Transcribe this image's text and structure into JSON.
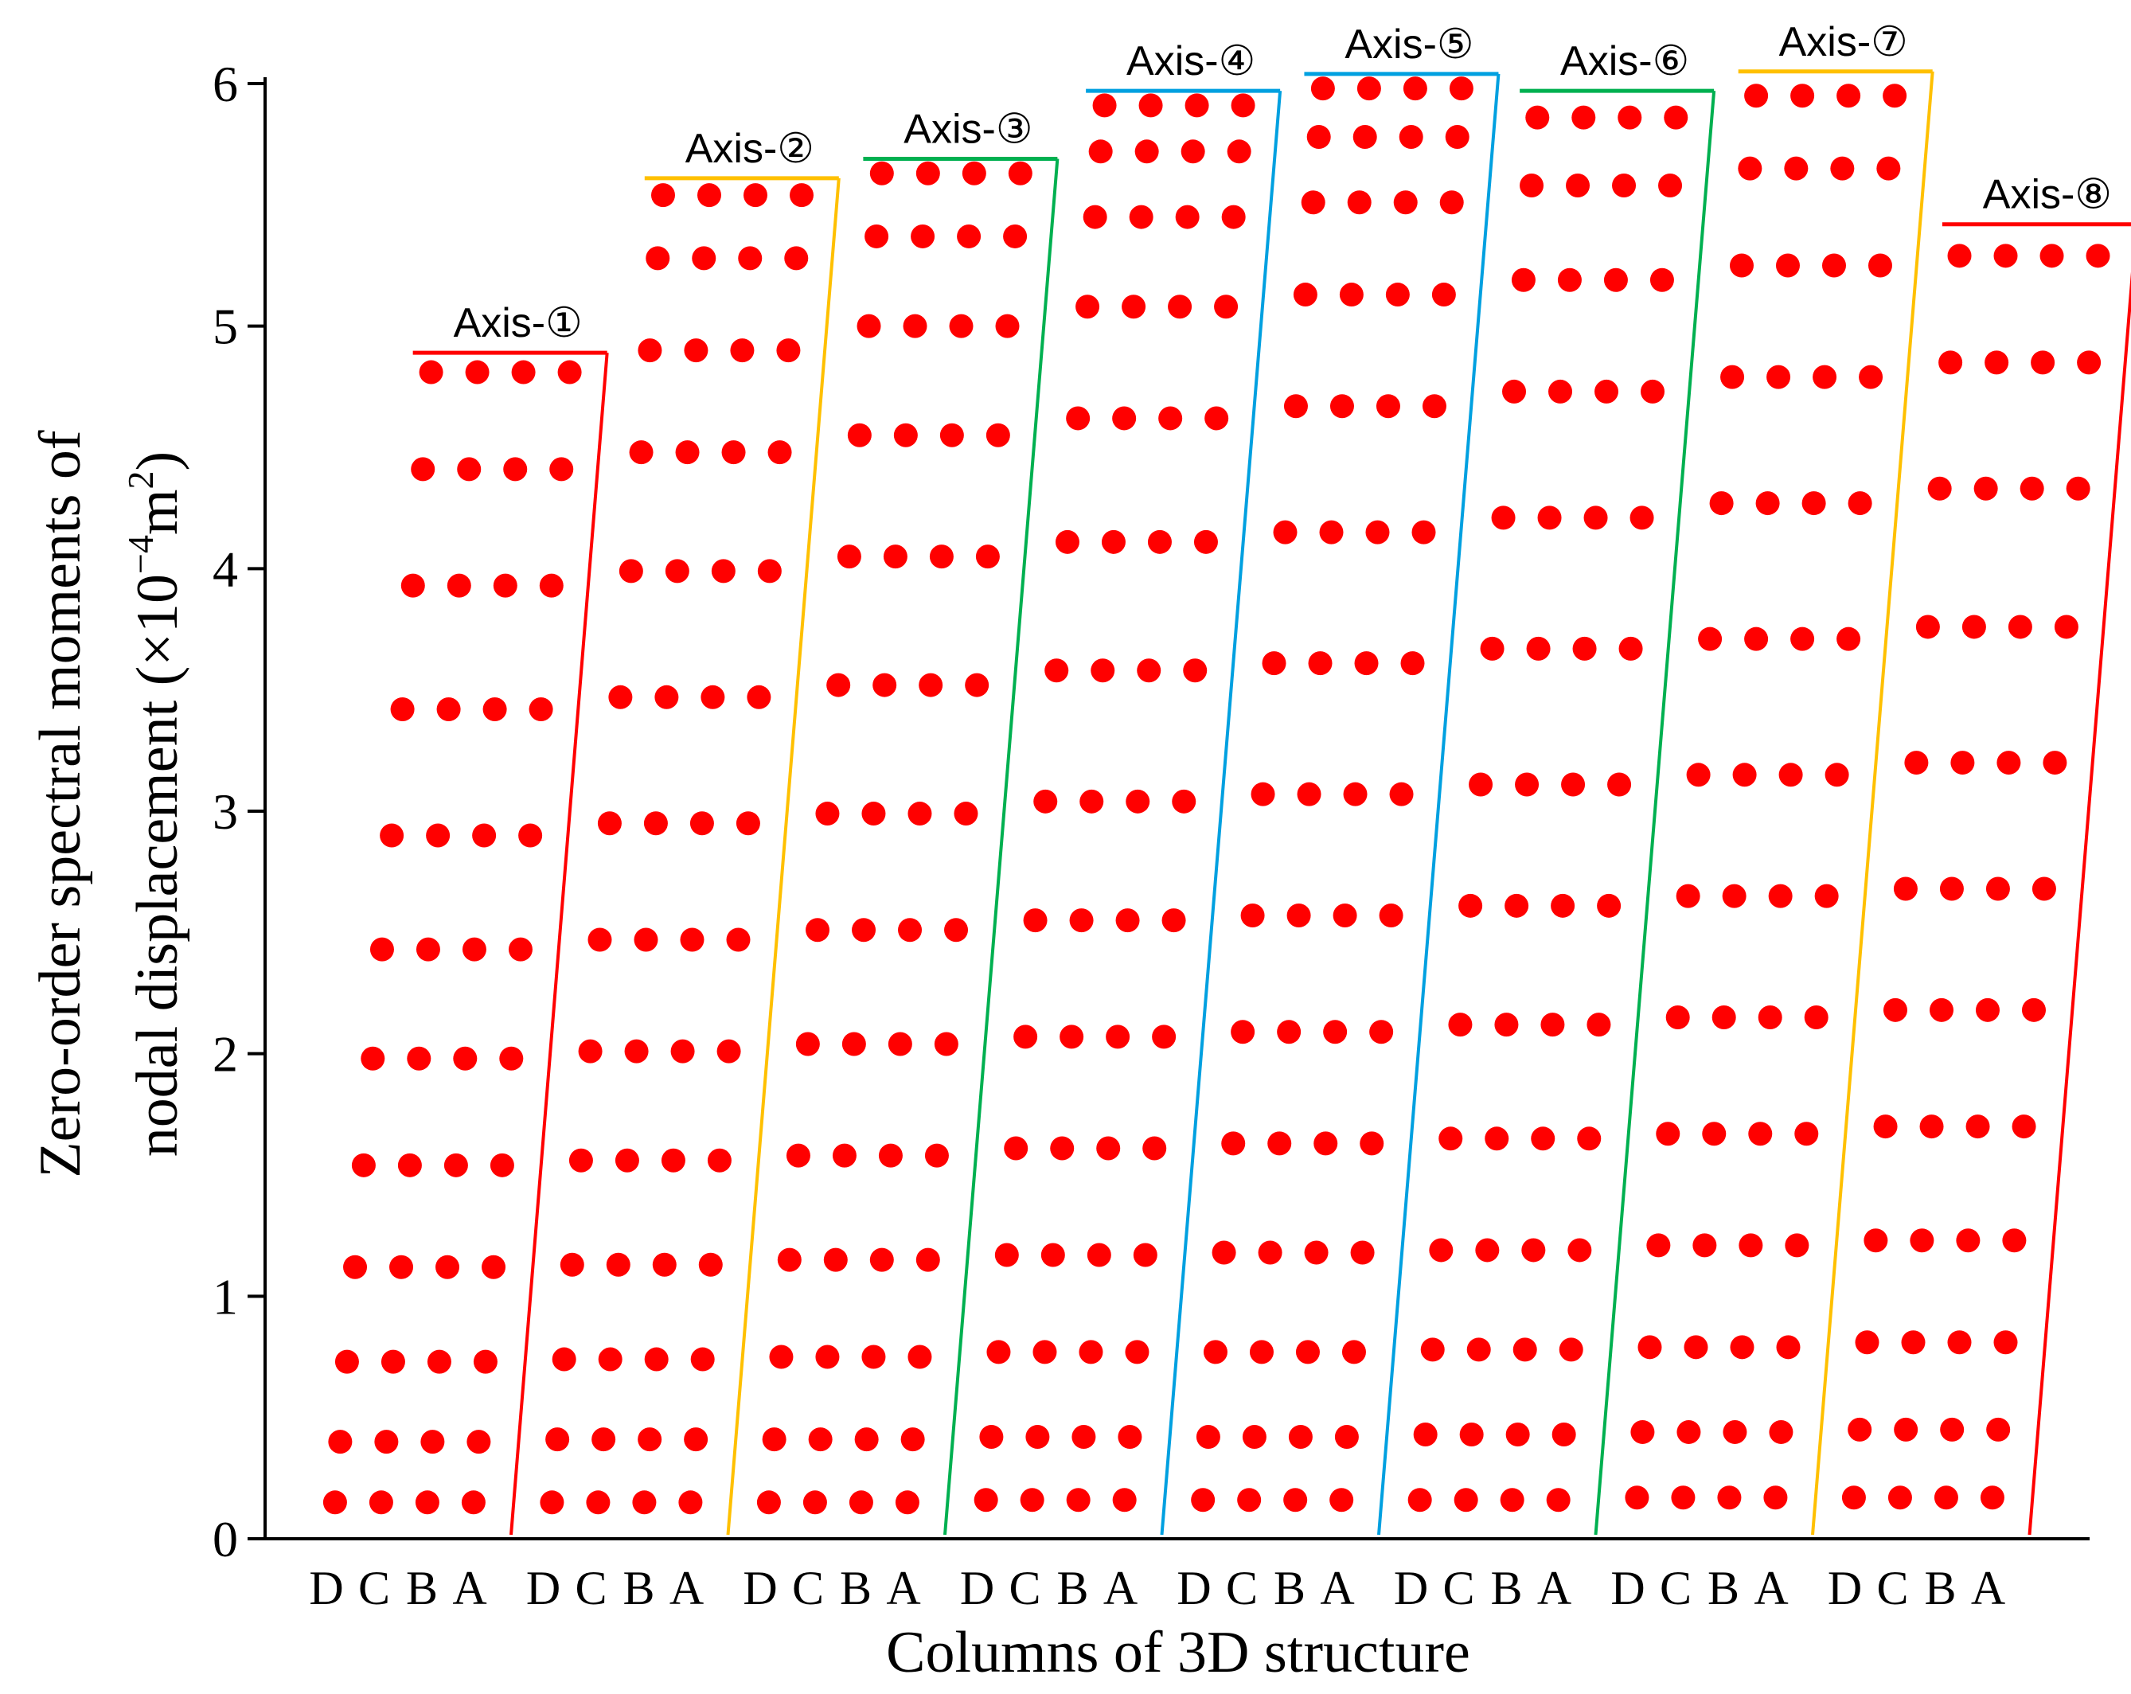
{
  "chart_data": {
    "type": "scatter",
    "xlabel": "Columns of  3D structure",
    "ylabel_line1": "Zero-order spectral moments of",
    "ylabel_line2": "nodal displacement (×10",
    "ylabel_exp1": "−4",
    "ylabel_mid": "m",
    "ylabel_exp2": "2",
    "ylabel_end": ")",
    "ylim": [
      0,
      6
    ],
    "yticks": [
      "0",
      "1",
      "2",
      "3",
      "4",
      "5",
      "6"
    ],
    "column_labels": [
      "D",
      "C",
      "B",
      "A"
    ],
    "marker_color": "#ff0000",
    "groups": [
      {
        "name": "Axis-①",
        "color": "#ff0000",
        "top": 4.89,
        "levels": [
          0.15,
          0.4,
          0.73,
          1.12,
          1.54,
          1.98,
          2.43,
          2.9,
          3.42,
          3.93,
          4.41,
          4.81
        ]
      },
      {
        "name": "Axis-②",
        "color": "#ffc000",
        "top": 5.61,
        "levels": [
          0.15,
          0.41,
          0.74,
          1.13,
          1.56,
          2.01,
          2.47,
          2.95,
          3.47,
          3.99,
          4.48,
          4.9,
          5.28,
          5.54
        ]
      },
      {
        "name": "Axis-③",
        "color": "#00b050",
        "top": 5.69,
        "levels": [
          0.15,
          0.41,
          0.75,
          1.15,
          1.58,
          2.04,
          2.51,
          2.99,
          3.52,
          4.05,
          4.55,
          5.0,
          5.37,
          5.63
        ]
      },
      {
        "name": "Axis-④",
        "color": "#00a0e0",
        "top": 5.97,
        "levels": [
          0.16,
          0.42,
          0.77,
          1.17,
          1.61,
          2.07,
          2.55,
          3.04,
          3.58,
          4.11,
          4.62,
          5.08,
          5.45,
          5.72,
          5.91
        ]
      },
      {
        "name": "Axis-⑤",
        "color": "#00a0e0",
        "top": 6.04,
        "levels": [
          0.16,
          0.42,
          0.77,
          1.18,
          1.63,
          2.09,
          2.57,
          3.07,
          3.61,
          4.15,
          4.67,
          5.13,
          5.51,
          5.78,
          5.98
        ]
      },
      {
        "name": "Axis-⑥",
        "color": "#00b050",
        "top": 5.97,
        "levels": [
          0.16,
          0.43,
          0.78,
          1.19,
          1.65,
          2.12,
          2.61,
          3.11,
          3.67,
          4.21,
          4.73,
          5.19,
          5.58,
          5.86
        ]
      },
      {
        "name": "Axis-⑦",
        "color": "#ffc000",
        "top": 6.05,
        "levels": [
          0.17,
          0.44,
          0.79,
          1.21,
          1.67,
          2.15,
          2.65,
          3.15,
          3.71,
          4.27,
          4.79,
          5.25,
          5.65,
          5.95
        ]
      },
      {
        "name": "Axis-⑧",
        "color": "#ff0000",
        "top": 5.42,
        "levels": [
          0.17,
          0.45,
          0.81,
          1.23,
          1.7,
          2.18,
          2.68,
          3.2,
          3.76,
          4.33,
          4.85,
          5.29
        ]
      }
    ]
  }
}
